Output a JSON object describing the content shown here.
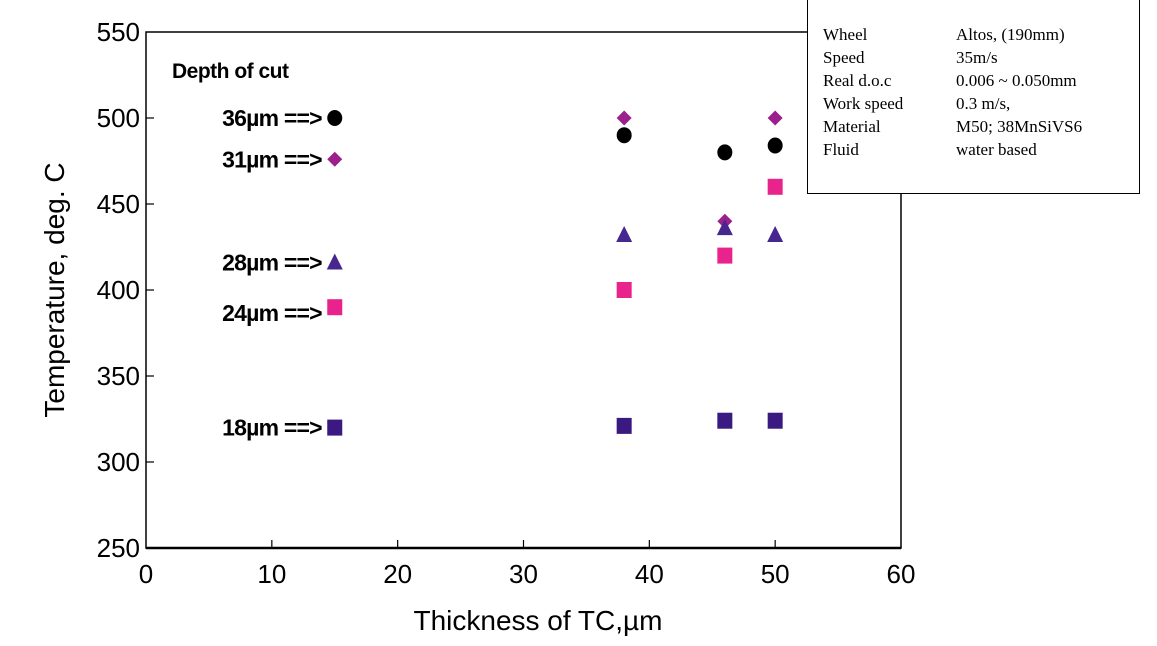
{
  "chart_data": {
    "type": "scatter",
    "title": "",
    "xlabel": "Thickness of TC,µm",
    "ylabel": "Temperature, deg. C",
    "xlim": [
      0,
      60
    ],
    "ylim": [
      250,
      550
    ],
    "xticks": [
      0,
      10,
      20,
      30,
      40,
      50,
      60
    ],
    "yticks": [
      250,
      300,
      350,
      400,
      450,
      500,
      550
    ],
    "grid": false,
    "legend": {
      "title": "Depth of cut",
      "placement": "top-left",
      "arrow": "==>"
    },
    "series": [
      {
        "name": "36µm",
        "label": "36µm",
        "marker": "circle",
        "color": "#000000",
        "x": [
          15,
          38,
          46,
          50
        ],
        "y": [
          500,
          490,
          480,
          484
        ]
      },
      {
        "name": "31µm",
        "label": "31µm",
        "marker": "diamond",
        "color": "#9b1f8c",
        "x": [
          15,
          38,
          46,
          50
        ],
        "y": [
          476,
          500,
          440,
          500
        ]
      },
      {
        "name": "28µm",
        "label": "28µm",
        "marker": "triangle",
        "color": "#45278f",
        "x": [
          15,
          38,
          46,
          50
        ],
        "y": [
          416,
          432,
          436,
          432
        ]
      },
      {
        "name": "24µm",
        "label": "24µm",
        "marker": "square",
        "color": "#e8248c",
        "x": [
          15,
          38,
          46,
          50
        ],
        "y": [
          390,
          400,
          420,
          460
        ]
      },
      {
        "name": "18µm",
        "label": "18µm",
        "marker": "square",
        "color": "#3a1a80",
        "x": [
          15,
          38,
          46,
          50
        ],
        "y": [
          320,
          321,
          324,
          324
        ]
      }
    ]
  },
  "info_box": {
    "rows": [
      {
        "key": "Wheel",
        "value": "Altos, (190mm)"
      },
      {
        "key": "Speed",
        "value": "35m/s"
      },
      {
        "key": "Real d.o.c",
        "value": "0.006 ~ 0.050mm"
      },
      {
        "key": "Work speed",
        "value": "0.3 m/s,"
      },
      {
        "key": "Material",
        "value": "M50; 38MnSiVS6"
      },
      {
        "key": "Fluid",
        "value": "water based"
      }
    ]
  }
}
